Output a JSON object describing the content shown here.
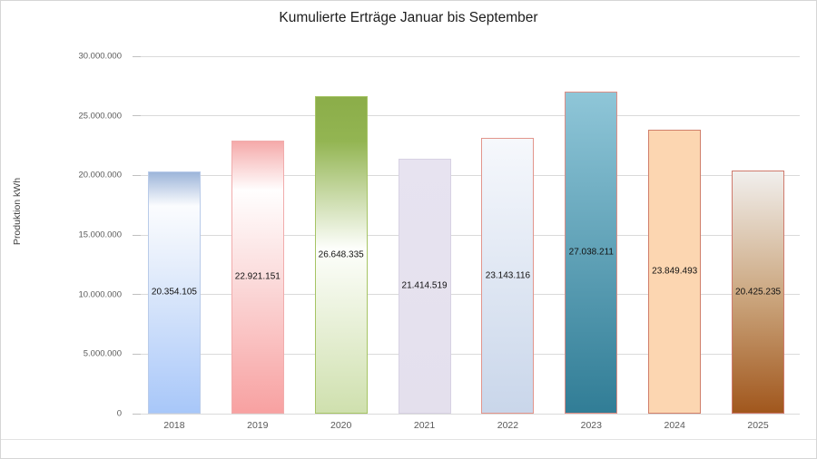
{
  "chart_data": {
    "type": "bar",
    "title": "Kumulierte Erträge Januar bis September",
    "xlabel": "",
    "ylabel": "Produktion kWh",
    "categories": [
      "2018",
      "2019",
      "2020",
      "2021",
      "2022",
      "2023",
      "2024",
      "2025"
    ],
    "values": [
      20354105,
      22921151,
      26648335,
      21414519,
      23143116,
      27038211,
      23849493,
      20425235
    ],
    "value_labels": [
      "20.354.105",
      "22.921.151",
      "26.648.335",
      "21.414.519",
      "23.143.116",
      "27.038.211",
      "23.849.493",
      "20.425.235"
    ],
    "ylim": [
      0,
      30000000
    ],
    "grid": true,
    "legend": false,
    "yticks": [
      {
        "value": 0,
        "label": "0"
      },
      {
        "value": 5000000,
        "label": "5.000.000"
      },
      {
        "value": 10000000,
        "label": "10.000.000"
      },
      {
        "value": 15000000,
        "label": "15.000.000"
      },
      {
        "value": 20000000,
        "label": "20.000.000"
      },
      {
        "value": 25000000,
        "label": "25.000.000"
      },
      {
        "value": 30000000,
        "label": "30.000.000"
      }
    ],
    "bar_styles": [
      {
        "gradient": [
          [
            "#9db5d9",
            "0%"
          ],
          [
            "#fbfcfe",
            "14%"
          ],
          [
            "#e4edfb",
            "40%"
          ],
          [
            "#a8c7f9",
            "100%"
          ]
        ],
        "border": "#b9cbe9"
      },
      {
        "gradient": [
          [
            "#f5aaaa",
            "0%"
          ],
          [
            "#fffefe",
            "18%"
          ],
          [
            "#fbdcdc",
            "50%"
          ],
          [
            "#f8a1a1",
            "100%"
          ]
        ],
        "border": "#f1acac"
      },
      {
        "gradient": [
          [
            "#8bad49",
            "0%"
          ],
          [
            "#93b552",
            "14%"
          ],
          [
            "#fdfefb",
            "48%"
          ],
          [
            "#cfe0ae",
            "100%"
          ]
        ],
        "border": "#a6c464"
      },
      {
        "gradient": [
          [
            "#e7e3f0",
            "0%"
          ],
          [
            "#e4e0ed",
            "100%"
          ]
        ],
        "border": "#d7d1e3"
      },
      {
        "gradient": [
          [
            "#f6f8fc",
            "0%"
          ],
          [
            "#c9d6ea",
            "100%"
          ]
        ],
        "border": "#e2958c"
      },
      {
        "gradient": [
          [
            "#8fc6d8",
            "0%"
          ],
          [
            "#317d96",
            "100%"
          ]
        ],
        "border": "#dd8d84"
      },
      {
        "gradient": [
          [
            "#fcd6b1",
            "0%"
          ],
          [
            "#fcd6b1",
            "100%"
          ]
        ],
        "border": "#d17f6b"
      },
      {
        "gradient": [
          [
            "#f1efed",
            "0%"
          ],
          [
            "#cba67e",
            "52%"
          ],
          [
            "#a1571d",
            "100%"
          ]
        ],
        "border": "#cf7a6d"
      }
    ],
    "colors": {
      "gridline": "#dadada",
      "tick": "#c0c0c0",
      "axis_text": "#595959",
      "title_text": "#1d1d1d",
      "value_text": "#111111",
      "frame_border": "#d6d6d6",
      "background": "#ffffff"
    }
  }
}
